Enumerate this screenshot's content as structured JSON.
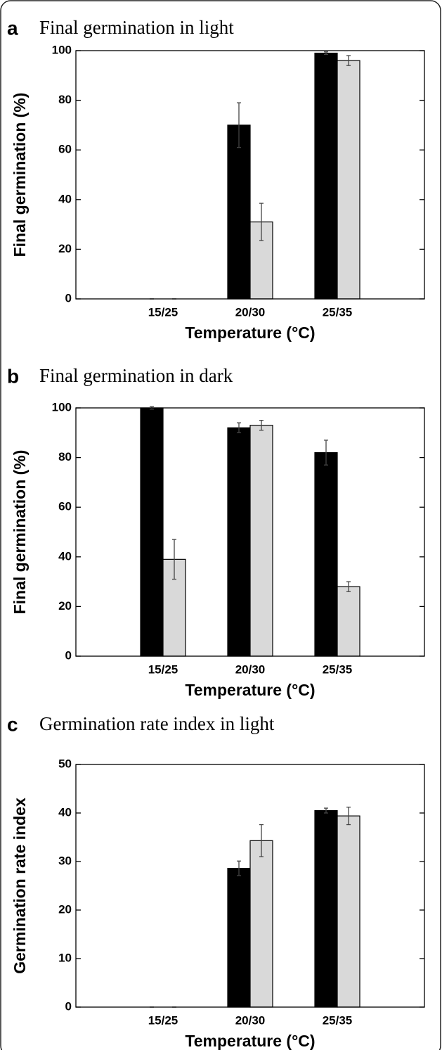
{
  "chart_data": [
    {
      "type": "bar",
      "label": "a",
      "title": "Final germination in light",
      "xlabel": "Temperature (°C)",
      "ylabel": "Final germination (%)",
      "categories": [
        "15/25",
        "20/30",
        "25/35"
      ],
      "series": [
        {
          "color": "#000000",
          "values": [
            0,
            70,
            99
          ],
          "errors": [
            0,
            9,
            0.5
          ]
        },
        {
          "color": "#d9d9d9",
          "values": [
            0,
            31,
            96
          ],
          "errors": [
            0,
            7.5,
            2
          ]
        }
      ],
      "ylim": [
        0,
        100
      ],
      "yticks": [
        0,
        20,
        40,
        60,
        80,
        100
      ]
    },
    {
      "type": "bar",
      "label": "b",
      "title": "Final germination in dark",
      "xlabel": "Temperature (°C)",
      "ylabel": "Final germination (%)",
      "categories": [
        "15/25",
        "20/30",
        "25/35"
      ],
      "series": [
        {
          "color": "#000000",
          "values": [
            100,
            92,
            82
          ],
          "errors": [
            0.5,
            2,
            5
          ]
        },
        {
          "color": "#d9d9d9",
          "values": [
            39,
            93,
            28
          ],
          "errors": [
            8,
            2,
            2
          ]
        }
      ],
      "ylim": [
        0,
        100
      ],
      "yticks": [
        0,
        20,
        40,
        60,
        80,
        100
      ]
    },
    {
      "type": "bar",
      "label": "c",
      "title": "Germination rate index in light",
      "xlabel": "Temperature (°C)",
      "ylabel": "Germination rate index",
      "categories": [
        "15/25",
        "20/30",
        "25/35"
      ],
      "series": [
        {
          "color": "#000000",
          "values": [
            0,
            28.6,
            40.5
          ],
          "errors": [
            0,
            1.5,
            0.5
          ]
        },
        {
          "color": "#d9d9d9",
          "values": [
            0,
            34.3,
            39.4
          ],
          "errors": [
            0,
            3.3,
            1.8
          ]
        }
      ],
      "ylim": [
        0,
        50
      ],
      "yticks": [
        0,
        10,
        20,
        30,
        40,
        50
      ]
    }
  ]
}
